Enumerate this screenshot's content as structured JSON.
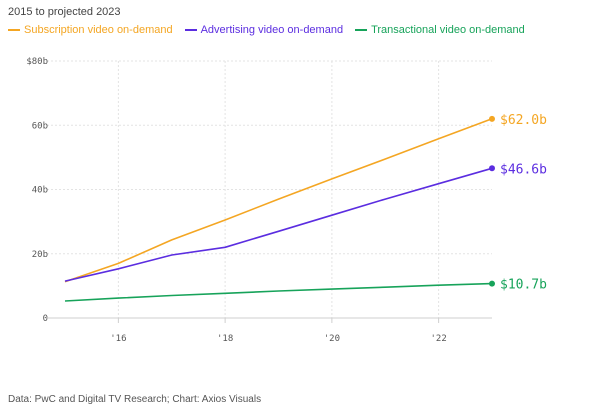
{
  "subtitle": "2015 to projected 2023",
  "footer": "Data: PwC and Digital TV Research; Chart: Axios Visuals",
  "chart_data": {
    "type": "line",
    "x_range": [
      2015,
      2023
    ],
    "ylim": [
      0,
      80
    ],
    "y_ticks": [
      0,
      20,
      40,
      60,
      80
    ],
    "y_tick_labels": [
      "0",
      "20b",
      "40b",
      "60b",
      "$80b"
    ],
    "x_ticks": [
      2016,
      2018,
      2020,
      2022
    ],
    "x_tick_labels": [
      "'16",
      "'18",
      "'20",
      "'22"
    ],
    "grid": "vertical",
    "legend_position": "top-left",
    "series": [
      {
        "name": "Subscription video on-demand",
        "color": "#f4a623",
        "x": [
          2015,
          2016,
          2017,
          2018,
          2019,
          2020,
          2021,
          2022,
          2023
        ],
        "values": [
          11.3,
          17.0,
          24.3,
          30.5,
          37.0,
          43.3,
          49.5,
          55.8,
          62.0
        ],
        "end_label": "$62.0b"
      },
      {
        "name": "Advertising video on-demand",
        "color": "#5b2de0",
        "x": [
          2015,
          2016,
          2017,
          2018,
          2019,
          2020,
          2021,
          2022,
          2023
        ],
        "values": [
          11.5,
          15.3,
          19.6,
          22.0,
          27.0,
          32.0,
          37.0,
          41.8,
          46.6
        ],
        "end_label": "$46.6b"
      },
      {
        "name": "Transactional video on-demand",
        "color": "#17a35a",
        "x": [
          2015,
          2016,
          2017,
          2018,
          2019,
          2020,
          2021,
          2022,
          2023
        ],
        "values": [
          5.3,
          6.2,
          7.0,
          7.7,
          8.4,
          9.0,
          9.6,
          10.2,
          10.7
        ],
        "end_label": "$10.7b"
      }
    ]
  }
}
